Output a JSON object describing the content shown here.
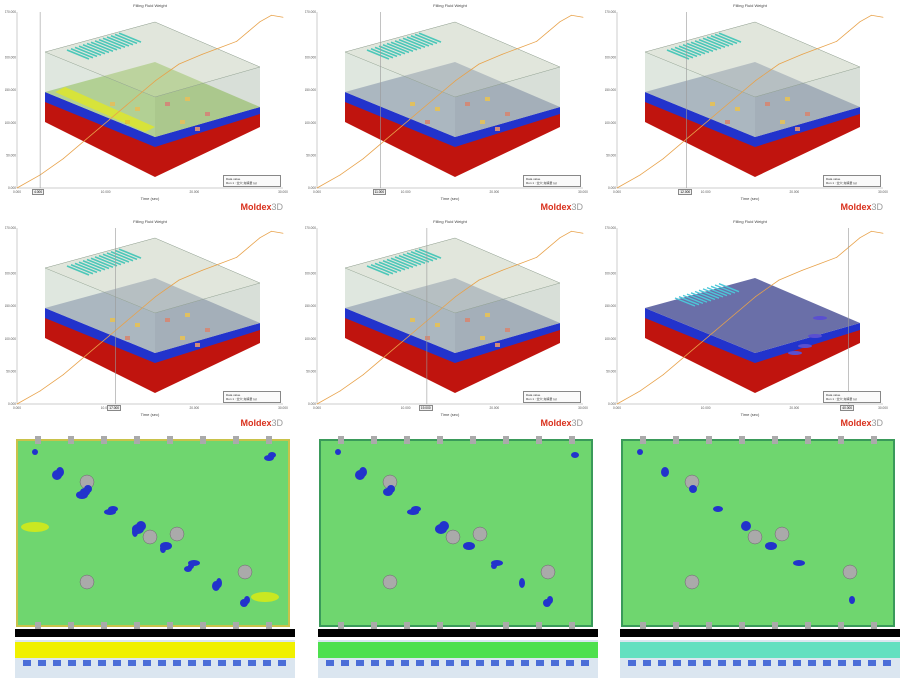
{
  "panel_title": "Filling Fluid Weight",
  "x_axis_label": "Time (sec)",
  "brand": {
    "name": "Moldex",
    "suffix": "3D"
  },
  "legend": {
    "header": "Data value",
    "series": "Run 1 : 全穴 充填量 (g)"
  },
  "y_ticks": [
    "0.000",
    "50.000",
    "100.000",
    "150.000",
    "200.000",
    "270.000"
  ],
  "x_ticks": [
    "0.000",
    "10.000",
    "20.000",
    "30.000"
  ],
  "panels": [
    {
      "id": "p1",
      "cursor_label": "4.000",
      "cursor_x": 4.0
    },
    {
      "id": "p2",
      "cursor_label": "11.000",
      "cursor_x": 11.0
    },
    {
      "id": "p3",
      "cursor_label": "12.000",
      "cursor_x": 12.0
    },
    {
      "id": "p4",
      "cursor_label": "17.000",
      "cursor_x": 17.0
    },
    {
      "id": "p5",
      "cursor_label": "19.000",
      "cursor_x": 19.0
    },
    {
      "id": "p6",
      "cursor_label": "40.000",
      "cursor_x": 40.0
    }
  ],
  "chart_data": {
    "type": "line",
    "title": "Filling Fluid Weight",
    "xlabel": "Time (sec)",
    "ylabel": "",
    "xlim": [
      0,
      46
    ],
    "ylim": [
      0,
      270
    ],
    "series": [
      {
        "name": "Run 1 : 全穴 充填量 (g)",
        "color": "#e8a24a",
        "x": [
          0,
          4,
          8,
          12,
          16,
          20,
          24,
          28,
          32,
          35,
          38,
          40,
          42,
          44,
          46
        ],
        "y": [
          0,
          20,
          45,
          75,
          105,
          135,
          165,
          190,
          205,
          215,
          225,
          240,
          255,
          265,
          262
        ]
      }
    ]
  },
  "colors": {
    "blue": "#2233cc",
    "green": "#6fd66f",
    "red": "#c0140e",
    "yellow": "#f0f000",
    "frame": "#bbbbbb"
  }
}
